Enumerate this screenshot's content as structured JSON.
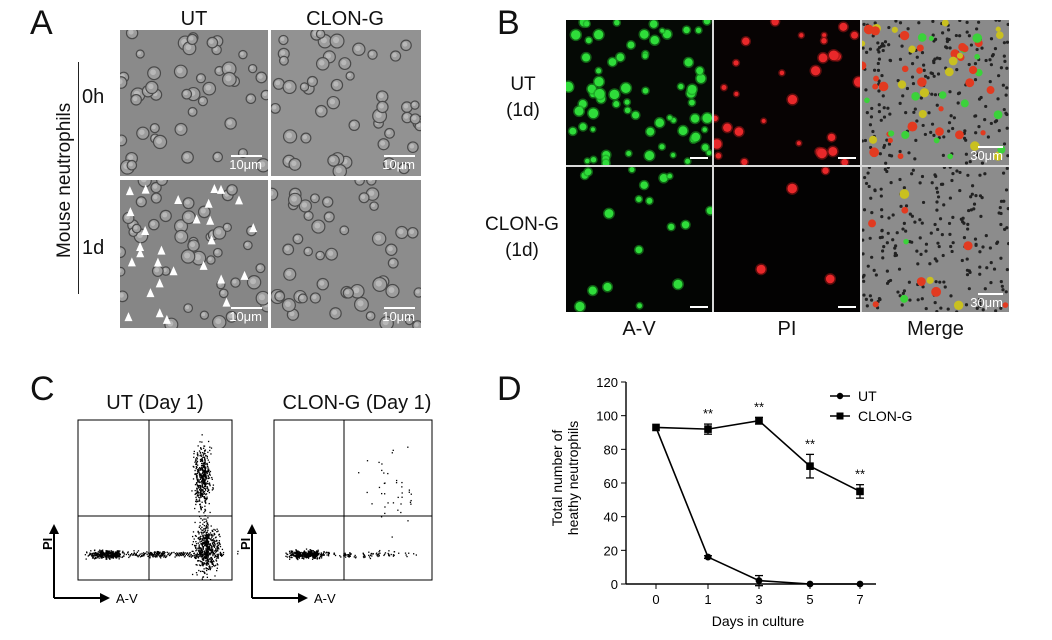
{
  "panels": {
    "A": {
      "letter": "A",
      "col_headers": [
        "UT",
        "CLON-G"
      ],
      "side_label": "Mouse neutrophils",
      "row_labels": [
        "0h",
        "1d"
      ],
      "scalebars": [
        "10μm",
        "10μm",
        "10μm",
        "10μm"
      ]
    },
    "B": {
      "letter": "B",
      "row_labels": [
        {
          "line1": "UT",
          "line2": "(1d)"
        },
        {
          "line1": "CLON-G",
          "line2": "(1d)"
        }
      ],
      "col_labels": [
        "A-V",
        "PI",
        "Merge"
      ],
      "scalebars": [
        "30μm",
        "30μm"
      ]
    },
    "C": {
      "letter": "C",
      "plot_titles": [
        "UT (Day 1)",
        "CLON-G (Day 1)"
      ],
      "y_axis": "PI",
      "x_axis": "A-V"
    },
    "D": {
      "letter": "D"
    }
  },
  "chart_data": {
    "type": "line",
    "xlabel": "Days in culture",
    "ylabel_lines": [
      "Total number of",
      "heathy neutrophils"
    ],
    "categories": [
      "0",
      "1",
      "3",
      "5",
      "7"
    ],
    "ylim": [
      0,
      120
    ],
    "yticks": [
      0,
      20,
      40,
      60,
      80,
      100,
      120
    ],
    "grid": false,
    "legend_position": "top-right",
    "series": [
      {
        "name": "UT",
        "marker": "circle",
        "values": [
          93,
          16,
          2,
          0,
          0
        ],
        "errors": [
          0,
          0.8,
          3,
          0,
          0
        ]
      },
      {
        "name": "CLON-G",
        "marker": "square",
        "values": [
          93,
          92,
          97,
          70,
          55
        ],
        "errors": [
          0,
          3,
          2,
          7,
          4
        ]
      }
    ],
    "annotations": [
      {
        "x": "1",
        "text": "**"
      },
      {
        "x": "3",
        "text": "**"
      },
      {
        "x": "5",
        "text": "**"
      },
      {
        "x": "7",
        "text": "**"
      }
    ]
  }
}
